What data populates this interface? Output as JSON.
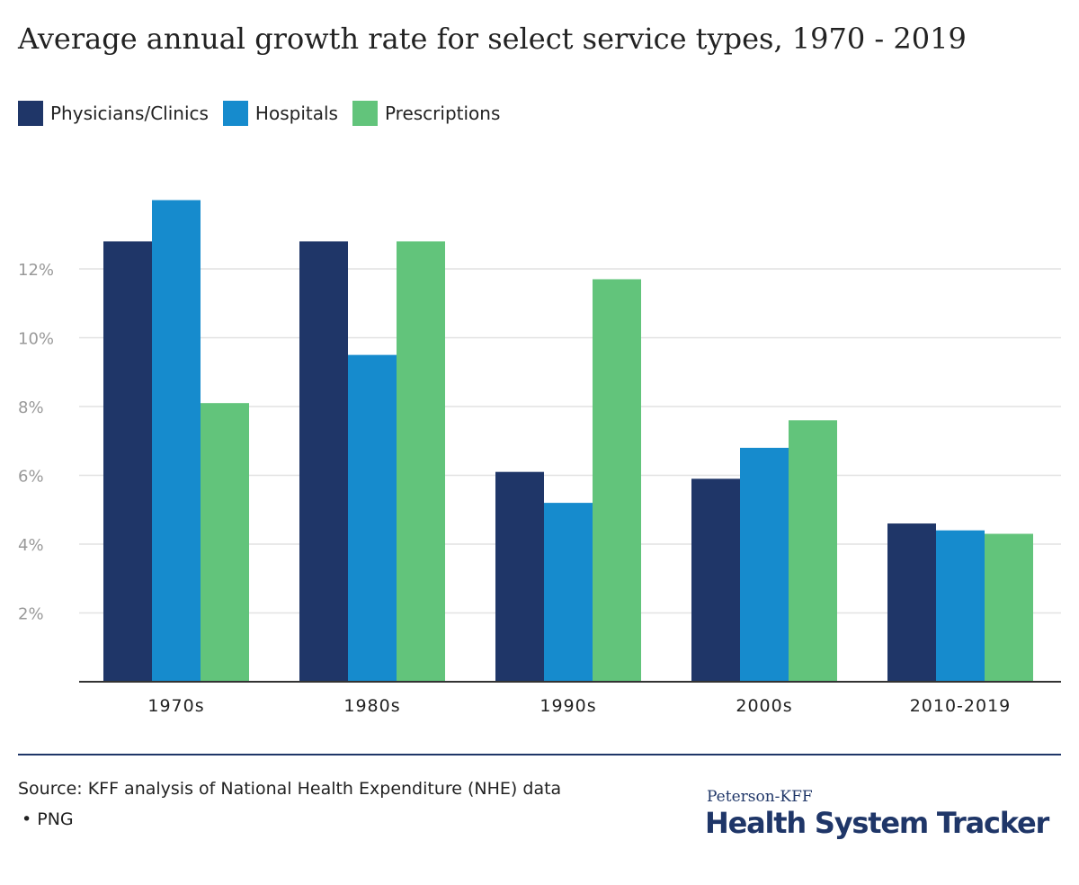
{
  "chart_data": {
    "type": "bar",
    "title": "Average annual growth rate for select service types, 1970 - 2019",
    "categories": [
      "1970s",
      "1980s",
      "1990s",
      "2000s",
      "2010-2019"
    ],
    "series": [
      {
        "name": "Physicians/Clinics",
        "color": "#1f3668",
        "values": [
          12.8,
          12.8,
          6.1,
          5.9,
          4.6
        ]
      },
      {
        "name": "Hospitals",
        "color": "#168bcd",
        "values": [
          14.0,
          9.5,
          5.2,
          6.8,
          4.4
        ]
      },
      {
        "name": "Prescriptions",
        "color": "#62c47b",
        "values": [
          8.1,
          12.8,
          11.7,
          7.6,
          4.3
        ]
      }
    ],
    "ylim": [
      0,
      14
    ],
    "yticks": [
      2,
      4,
      6,
      8,
      10,
      12
    ],
    "ytick_labels": [
      "2%",
      "4%",
      "6%",
      "8%",
      "10%",
      "12%"
    ],
    "xlabel": "",
    "ylabel": "",
    "grid": true,
    "legend": "top-left"
  },
  "footer": {
    "source": "Source: KFF analysis of National Health Expenditure (NHE) data",
    "format_link": "• PNG"
  },
  "brand": {
    "line1": "Peterson-KFF",
    "line2": "Health System Tracker"
  },
  "colors": {
    "axis": "#333333",
    "grid": "#e2e2e2",
    "tick_text": "#999999",
    "rule": "#1f3668"
  }
}
